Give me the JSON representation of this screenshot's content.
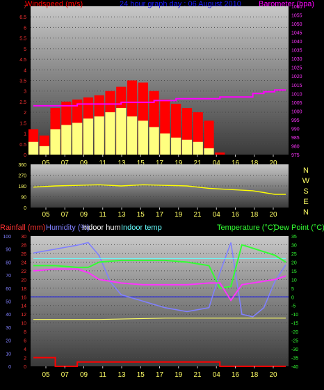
{
  "colors": {
    "background": "#000000",
    "wind": "#ff0000",
    "gust": "#ffff80",
    "pressure": "#ff00ff",
    "direction": "#ffff00",
    "rain": "#ff0000",
    "humidity": "#8080ff",
    "indoor_hum": "#ffff66",
    "indoor_temp": "#66ffff",
    "temperature": "#33ff33",
    "dewpoint": "#ff33ff",
    "zero_line": "#0000ff"
  },
  "chart_data": [
    {
      "type": "line",
      "title": "24 hour graph day : 06 August 2010",
      "left_axis_label": "Windspeed (m/s)",
      "right_axis_label": "Barometer (hpa)",
      "x_ticks": [
        "05",
        "07",
        "09",
        "11",
        "13",
        "15",
        "17",
        "19",
        "21",
        "04",
        "16",
        "18",
        "20"
      ],
      "y_left_ticks": [
        "0",
        "0.5",
        "1",
        "1.5",
        "2",
        "2.5",
        "3",
        "3.5",
        "4",
        "4.5",
        "5",
        "5.5",
        "6",
        "6.5",
        "7"
      ],
      "ylim_left": [
        0,
        7
      ],
      "y_right_ticks": [
        "975",
        "980",
        "985",
        "990",
        "995",
        "1000",
        "1005",
        "1010",
        "1015",
        "1020",
        "1025",
        "1030",
        "1035",
        "1040",
        "1045",
        "1050",
        "1055",
        "1060"
      ],
      "ylim_right": [
        975,
        1060
      ],
      "series": [
        {
          "name": "Windspeed",
          "axis": "left",
          "x": [
            0,
            1,
            2,
            3,
            4,
            5,
            6,
            7,
            8,
            9,
            10,
            11,
            12,
            13,
            14,
            15,
            16,
            17,
            18,
            19,
            20,
            21,
            22,
            23
          ],
          "values": [
            1.2,
            0.9,
            2.2,
            2.5,
            2.6,
            2.7,
            2.8,
            3.0,
            3.2,
            3.5,
            3.4,
            3.0,
            2.6,
            2.4,
            2.2,
            2.0,
            1.6,
            0.1,
            0,
            0,
            0,
            0,
            0,
            0
          ]
        },
        {
          "name": "Gust",
          "axis": "left",
          "x": [
            0,
            1,
            2,
            3,
            4,
            5,
            6,
            7,
            8,
            9,
            10,
            11,
            12,
            13,
            14,
            15,
            16,
            17,
            18,
            19,
            20,
            21,
            22,
            23
          ],
          "values": [
            0.6,
            0.4,
            1.2,
            1.4,
            1.5,
            1.7,
            1.8,
            2.0,
            2.2,
            1.8,
            1.6,
            1.3,
            1.0,
            0.8,
            0.7,
            0.6,
            0.3,
            0,
            0,
            0,
            0,
            0,
            0,
            0
          ]
        },
        {
          "name": "Barometer",
          "axis": "right",
          "x": [
            0,
            4,
            8,
            11,
            13,
            15,
            17,
            19,
            20,
            21,
            22,
            23
          ],
          "values": [
            1003,
            1004,
            1005,
            1006,
            1007,
            1007,
            1008,
            1008,
            1010,
            1011,
            1012,
            1012
          ]
        }
      ]
    },
    {
      "type": "line",
      "title": "",
      "x_ticks": [
        "05",
        "07",
        "09",
        "11",
        "13",
        "15",
        "17",
        "19",
        "21",
        "04",
        "16",
        "18",
        "20"
      ],
      "y_ticks": [
        "0",
        "90",
        "180",
        "270",
        "360"
      ],
      "ylim": [
        0,
        360
      ],
      "compass": [
        "N",
        "W",
        "S",
        "E",
        "N"
      ],
      "series": [
        {
          "name": "Wind direction",
          "x": [
            0,
            2,
            4,
            6,
            8,
            10,
            12,
            14,
            16,
            18,
            20,
            22,
            23
          ],
          "values": [
            170,
            180,
            185,
            190,
            180,
            190,
            185,
            180,
            160,
            150,
            140,
            110,
            110
          ]
        }
      ]
    },
    {
      "type": "line",
      "title": "",
      "legend": [
        "Rainfall (mm)",
        "Humidity (%)",
        "Indoor hum",
        "Indoor temp",
        "Temperature (°C)",
        "Dew Point (°C)"
      ],
      "x_ticks": [
        "05",
        "07",
        "09",
        "11",
        "13",
        "15",
        "17",
        "19",
        "21",
        "04",
        "16",
        "18",
        "20"
      ],
      "y_rain_ticks": [
        "0",
        "2",
        "4",
        "6",
        "8",
        "10",
        "12",
        "14",
        "16",
        "18",
        "20",
        "22",
        "24",
        "26",
        "28",
        "30"
      ],
      "ylim_rain": [
        0,
        30
      ],
      "y_hum_ticks": [
        "0",
        "10",
        "20",
        "30",
        "40",
        "50",
        "60",
        "70",
        "80",
        "90",
        "100"
      ],
      "ylim_hum": [
        0,
        100
      ],
      "y_temp_ticks": [
        "-40",
        "-35",
        "-30",
        "-25",
        "-20",
        "-15",
        "-10",
        "-5",
        "0",
        "5",
        "10",
        "15",
        "20",
        "25",
        "30",
        "35"
      ],
      "ylim_temp": [
        -40,
        35
      ],
      "series": [
        {
          "name": "Rainfall",
          "axis": "rain",
          "x": [
            0,
            2,
            4,
            16,
            17,
            23
          ],
          "values": [
            2.0,
            0,
            1.0,
            1.0,
            0,
            0
          ]
        },
        {
          "name": "Humidity",
          "axis": "hum",
          "x": [
            0,
            2,
            4,
            5,
            6,
            7,
            8,
            10,
            12,
            14,
            16,
            17,
            18,
            19,
            20,
            21,
            22,
            23
          ],
          "values": [
            87,
            90,
            93,
            95,
            85,
            65,
            55,
            50,
            45,
            42,
            45,
            72,
            95,
            40,
            38,
            45,
            65,
            78
          ]
        },
        {
          "name": "Indoor hum",
          "axis": "hum",
          "x": [
            0,
            6,
            12,
            18,
            23
          ],
          "values": [
            36,
            36,
            37,
            37,
            37
          ]
        },
        {
          "name": "Indoor temp",
          "axis": "temp",
          "x": [
            0,
            6,
            12,
            18,
            23
          ],
          "values": [
            22,
            22,
            22,
            22,
            22
          ]
        },
        {
          "name": "Temperature",
          "axis": "temp",
          "x": [
            0,
            2,
            4,
            5,
            6,
            8,
            10,
            12,
            14,
            16,
            17,
            18,
            19,
            20,
            21,
            22,
            23
          ],
          "values": [
            18,
            18,
            17,
            17,
            20,
            21,
            21,
            21,
            20,
            18,
            5,
            6,
            30,
            28,
            26,
            24,
            20
          ]
        },
        {
          "name": "Dew Point",
          "axis": "temp",
          "x": [
            0,
            2,
            4,
            5,
            6,
            8,
            10,
            12,
            14,
            16,
            17,
            18,
            19,
            20,
            21,
            22,
            23
          ],
          "values": [
            15,
            16,
            16,
            14,
            10,
            8,
            7,
            7,
            7,
            8,
            8,
            -2,
            7,
            8,
            9,
            10,
            12
          ]
        }
      ]
    }
  ]
}
